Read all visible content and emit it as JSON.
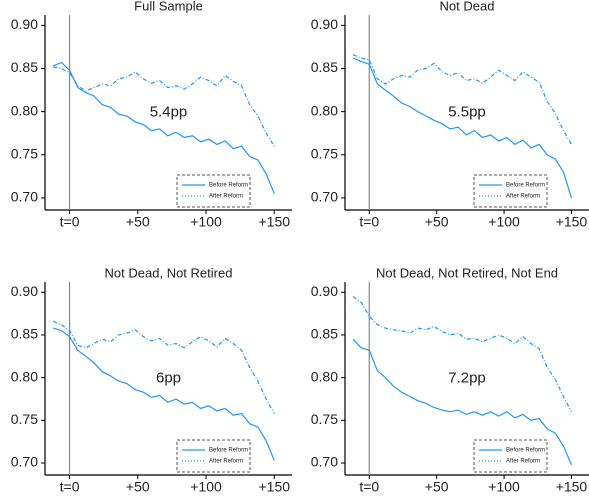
{
  "chart_data": [
    {
      "type": "line",
      "title": "Full Sample",
      "x": [
        -12,
        -6,
        0,
        6,
        12,
        18,
        24,
        30,
        36,
        42,
        48,
        54,
        60,
        66,
        72,
        78,
        84,
        90,
        96,
        102,
        108,
        114,
        120,
        126,
        132,
        138,
        144,
        150
      ],
      "series": [
        {
          "name": "Before Reform",
          "color": "#2196f3",
          "style": "solid",
          "values": [
            0.853,
            0.857,
            0.848,
            0.828,
            0.822,
            0.818,
            0.808,
            0.805,
            0.797,
            0.795,
            0.788,
            0.785,
            0.778,
            0.78,
            0.772,
            0.776,
            0.77,
            0.772,
            0.765,
            0.768,
            0.762,
            0.766,
            0.757,
            0.76,
            0.748,
            0.744,
            0.728,
            0.705
          ]
        },
        {
          "name": "After Reform",
          "color": "#2196f3",
          "style": "dotted",
          "values": [
            0.852,
            0.85,
            0.845,
            0.83,
            0.824,
            0.828,
            0.832,
            0.83,
            0.838,
            0.84,
            0.846,
            0.838,
            0.833,
            0.836,
            0.828,
            0.83,
            0.826,
            0.832,
            0.84,
            0.836,
            0.83,
            0.842,
            0.835,
            0.83,
            0.808,
            0.795,
            0.775,
            0.76
          ]
        }
      ],
      "annotation": "5.4pp",
      "vline": 0,
      "xlim": [
        -18,
        163
      ],
      "ylim": [
        0.686,
        0.912
      ],
      "xticks": [
        {
          "value": 0,
          "label": "t=0"
        },
        {
          "value": 50,
          "label": "+50"
        },
        {
          "value": 100,
          "label": "+100"
        },
        {
          "value": 150,
          "label": "+150"
        }
      ],
      "yticks": [
        {
          "value": 0.7,
          "label": "0.70"
        },
        {
          "value": 0.75,
          "label": "0.75"
        },
        {
          "value": 0.8,
          "label": "0.80"
        },
        {
          "value": 0.85,
          "label": "0.85"
        },
        {
          "value": 0.9,
          "label": "0.90"
        }
      ]
    },
    {
      "type": "line",
      "title": "Not Dead",
      "x": [
        -12,
        -6,
        0,
        6,
        12,
        18,
        24,
        30,
        36,
        42,
        48,
        54,
        60,
        66,
        72,
        78,
        84,
        90,
        96,
        102,
        108,
        114,
        120,
        126,
        132,
        138,
        144,
        150
      ],
      "series": [
        {
          "name": "Before Reform",
          "color": "#2196f3",
          "style": "solid",
          "values": [
            0.862,
            0.858,
            0.855,
            0.832,
            0.825,
            0.818,
            0.81,
            0.806,
            0.8,
            0.795,
            0.79,
            0.786,
            0.78,
            0.782,
            0.773,
            0.778,
            0.77,
            0.773,
            0.766,
            0.77,
            0.762,
            0.767,
            0.758,
            0.762,
            0.75,
            0.745,
            0.73,
            0.7
          ]
        },
        {
          "name": "After Reform",
          "color": "#2196f3",
          "style": "dotted",
          "values": [
            0.866,
            0.862,
            0.86,
            0.838,
            0.832,
            0.838,
            0.842,
            0.84,
            0.848,
            0.85,
            0.856,
            0.846,
            0.842,
            0.845,
            0.836,
            0.838,
            0.833,
            0.84,
            0.848,
            0.842,
            0.836,
            0.846,
            0.84,
            0.834,
            0.812,
            0.798,
            0.778,
            0.762
          ]
        }
      ],
      "annotation": "5.5pp",
      "vline": 0,
      "xlim": [
        -18,
        163
      ],
      "ylim": [
        0.686,
        0.912
      ],
      "xticks": [
        {
          "value": 0,
          "label": "t=0"
        },
        {
          "value": 50,
          "label": "+50"
        },
        {
          "value": 100,
          "label": "+100"
        },
        {
          "value": 150,
          "label": "+150"
        }
      ],
      "yticks": [
        {
          "value": 0.7,
          "label": "0.70"
        },
        {
          "value": 0.75,
          "label": "0.75"
        },
        {
          "value": 0.8,
          "label": "0.80"
        },
        {
          "value": 0.85,
          "label": "0.85"
        },
        {
          "value": 0.9,
          "label": "0.90"
        }
      ]
    },
    {
      "type": "line",
      "title": "Not Dead, Not Retired",
      "x": [
        -12,
        -6,
        0,
        6,
        12,
        18,
        24,
        30,
        36,
        42,
        48,
        54,
        60,
        66,
        72,
        78,
        84,
        90,
        96,
        102,
        108,
        114,
        120,
        126,
        132,
        138,
        144,
        150
      ],
      "series": [
        {
          "name": "Before Reform",
          "color": "#2196f3",
          "style": "solid",
          "values": [
            0.858,
            0.855,
            0.848,
            0.832,
            0.825,
            0.817,
            0.807,
            0.802,
            0.796,
            0.793,
            0.786,
            0.783,
            0.777,
            0.779,
            0.771,
            0.775,
            0.769,
            0.771,
            0.764,
            0.767,
            0.761,
            0.764,
            0.756,
            0.758,
            0.746,
            0.742,
            0.726,
            0.703
          ]
        },
        {
          "name": "After Reform",
          "color": "#2196f3",
          "style": "dotted",
          "values": [
            0.866,
            0.862,
            0.855,
            0.838,
            0.835,
            0.84,
            0.845,
            0.842,
            0.85,
            0.852,
            0.856,
            0.848,
            0.843,
            0.846,
            0.838,
            0.84,
            0.835,
            0.842,
            0.848,
            0.843,
            0.836,
            0.846,
            0.84,
            0.832,
            0.812,
            0.796,
            0.775,
            0.758
          ]
        }
      ],
      "annotation": "6pp",
      "vline": 0,
      "xlim": [
        -18,
        163
      ],
      "ylim": [
        0.686,
        0.912
      ],
      "xticks": [
        {
          "value": 0,
          "label": "t=0"
        },
        {
          "value": 50,
          "label": "+50"
        },
        {
          "value": 100,
          "label": "+100"
        },
        {
          "value": 150,
          "label": "+150"
        }
      ],
      "yticks": [
        {
          "value": 0.7,
          "label": "0.70"
        },
        {
          "value": 0.75,
          "label": "0.75"
        },
        {
          "value": 0.8,
          "label": "0.80"
        },
        {
          "value": 0.85,
          "label": "0.85"
        },
        {
          "value": 0.9,
          "label": "0.90"
        }
      ]
    },
    {
      "type": "line",
      "title": "Not Dead, Not Retired, Not End",
      "x": [
        -12,
        -6,
        0,
        6,
        12,
        18,
        24,
        30,
        36,
        42,
        48,
        54,
        60,
        66,
        72,
        78,
        84,
        90,
        96,
        102,
        108,
        114,
        120,
        126,
        132,
        138,
        144,
        150
      ],
      "series": [
        {
          "name": "Before Reform",
          "color": "#2196f3",
          "style": "solid",
          "values": [
            0.845,
            0.835,
            0.832,
            0.808,
            0.8,
            0.79,
            0.783,
            0.778,
            0.773,
            0.77,
            0.765,
            0.762,
            0.76,
            0.762,
            0.757,
            0.76,
            0.756,
            0.76,
            0.755,
            0.76,
            0.753,
            0.757,
            0.75,
            0.752,
            0.74,
            0.735,
            0.72,
            0.698
          ]
        },
        {
          "name": "After Reform",
          "color": "#2196f3",
          "style": "dotted",
          "values": [
            0.895,
            0.888,
            0.872,
            0.862,
            0.858,
            0.856,
            0.855,
            0.852,
            0.858,
            0.856,
            0.86,
            0.854,
            0.85,
            0.852,
            0.845,
            0.846,
            0.842,
            0.846,
            0.85,
            0.846,
            0.84,
            0.848,
            0.84,
            0.834,
            0.812,
            0.798,
            0.778,
            0.76
          ]
        }
      ],
      "annotation": "7.2pp",
      "vline": 0,
      "xlim": [
        -18,
        163
      ],
      "ylim": [
        0.686,
        0.912
      ],
      "xticks": [
        {
          "value": 0,
          "label": "t=0"
        },
        {
          "value": 50,
          "label": "+50"
        },
        {
          "value": 100,
          "label": "+100"
        },
        {
          "value": 150,
          "label": "+150"
        }
      ],
      "yticks": [
        {
          "value": 0.7,
          "label": "0.70"
        },
        {
          "value": 0.75,
          "label": "0.75"
        },
        {
          "value": 0.8,
          "label": "0.80"
        },
        {
          "value": 0.85,
          "label": "0.85"
        },
        {
          "value": 0.9,
          "label": "0.90"
        }
      ]
    }
  ]
}
